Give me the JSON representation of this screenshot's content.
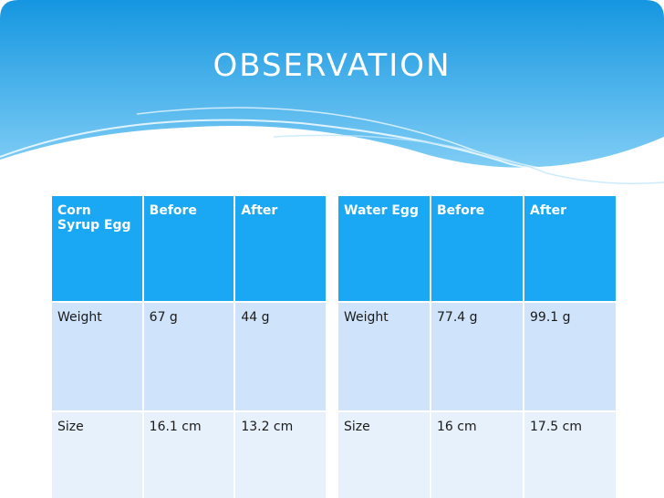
{
  "title": "OBSERVATION",
  "tables": [
    {
      "header": [
        "Corn Syrup Egg",
        "Before",
        "After"
      ],
      "rows": [
        [
          "Weight",
          "67 g",
          "44 g"
        ],
        [
          "Size",
          "16.1 cm",
          "13.2 cm"
        ]
      ]
    },
    {
      "header": [
        "Water Egg",
        "Before",
        "After"
      ],
      "rows": [
        [
          "Weight",
          "77.4 g",
          "99.1 g"
        ],
        [
          "Size",
          "16 cm",
          "17.5 cm"
        ]
      ]
    }
  ]
}
